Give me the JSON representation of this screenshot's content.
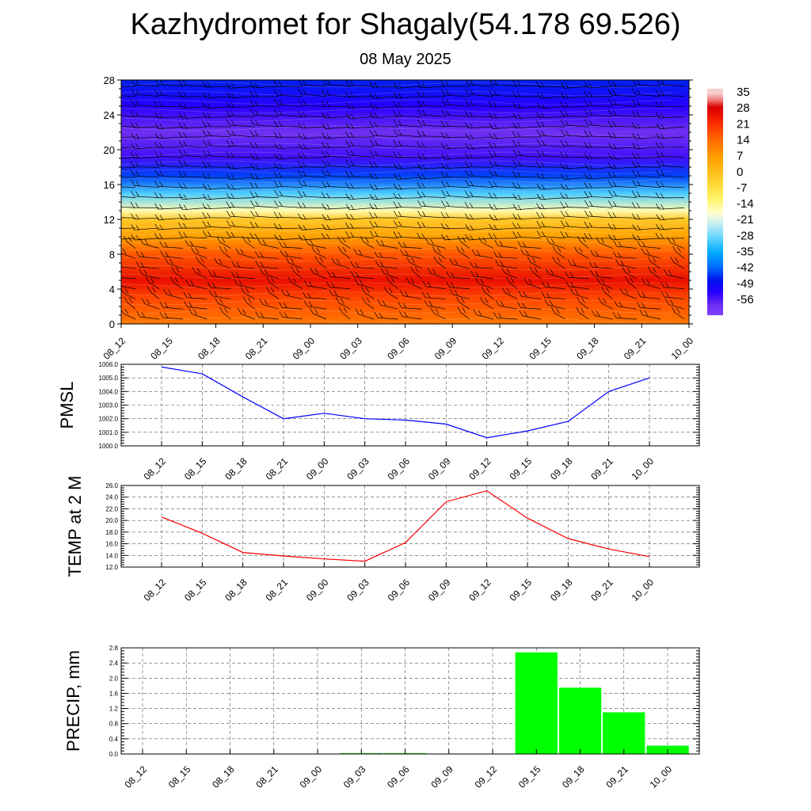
{
  "title": "Kazhydromet for Shagaly(54.178 69.526)",
  "subtitle": "08 May 2025",
  "time_labels": [
    "08_12",
    "08_15",
    "08_18",
    "08_21",
    "09_00",
    "09_03",
    "09_06",
    "09_09",
    "09_12",
    "09_15",
    "09_18",
    "09_21",
    "10_00"
  ],
  "chart_data": [
    {
      "type": "heatmap",
      "title": "",
      "x": [
        "08_12",
        "08_15",
        "08_18",
        "08_21",
        "09_00",
        "09_03",
        "09_06",
        "09_09",
        "09_12",
        "09_15",
        "09_18",
        "09_21",
        "10_00"
      ],
      "ylim": [
        0,
        28
      ],
      "y_ticks": [
        0,
        4,
        8,
        12,
        16,
        20,
        24,
        28
      ],
      "color_scale": [
        35,
        28,
        21,
        14,
        7,
        0,
        -7,
        -14,
        -21,
        -28,
        -35,
        -42,
        -49,
        -56
      ],
      "vertical_profile": [
        {
          "y": 0,
          "value": 14
        },
        {
          "y": 3,
          "value": 20
        },
        {
          "y": 5,
          "value": 27
        },
        {
          "y": 8,
          "value": 18
        },
        {
          "y": 10,
          "value": 8
        },
        {
          "y": 12,
          "value": 0
        },
        {
          "y": 13,
          "value": -14
        },
        {
          "y": 15,
          "value": -28
        },
        {
          "y": 17,
          "value": -42
        },
        {
          "y": 19,
          "value": -52
        },
        {
          "y": 22,
          "value": -56
        },
        {
          "y": 25,
          "value": -50
        },
        {
          "y": 28,
          "value": -44
        }
      ],
      "overlay": "wind barbs"
    },
    {
      "type": "line",
      "ylabel": "PMSL",
      "x": [
        "08_12",
        "08_15",
        "08_18",
        "08_21",
        "09_00",
        "09_03",
        "09_06",
        "09_09",
        "09_12",
        "09_15",
        "09_18",
        "09_21",
        "10_00"
      ],
      "series": [
        {
          "values": [
            1005.8,
            1005.3,
            1003.6,
            1002.0,
            1002.4,
            1002.0,
            1001.9,
            1001.6,
            1000.6,
            1001.1,
            1001.8,
            1004.0,
            1005.0
          ],
          "color": "#0000ff"
        }
      ],
      "ylim": [
        1000.0,
        1006.0
      ],
      "y_ticks": [
        "1000.0",
        "1001.0",
        "1002.0",
        "1003.0",
        "1004.0",
        "1005.0",
        "1006.0"
      ],
      "grid": true
    },
    {
      "type": "line",
      "ylabel": "TEMP at 2 M",
      "x": [
        "08_12",
        "08_15",
        "08_18",
        "08_21",
        "09_00",
        "09_03",
        "09_06",
        "09_09",
        "09_12",
        "09_15",
        "09_18",
        "09_21",
        "10_00"
      ],
      "series": [
        {
          "values": [
            20.6,
            17.8,
            14.5,
            13.9,
            13.4,
            13.0,
            16.2,
            23.2,
            25.1,
            20.4,
            16.9,
            15.1,
            13.8
          ],
          "color": "#ff0000"
        }
      ],
      "ylim": [
        12.0,
        26.0
      ],
      "y_ticks": [
        "12.0",
        "14.0",
        "16.0",
        "18.0",
        "20.0",
        "22.0",
        "24.0",
        "26.0"
      ],
      "grid": true
    },
    {
      "type": "bar",
      "ylabel": "PRECIP, mm",
      "categories": [
        "08_12",
        "08_15",
        "08_18",
        "08_21",
        "09_00",
        "09_03",
        "09_06",
        "09_09",
        "09_12",
        "09_15",
        "09_18",
        "09_21",
        "10_00"
      ],
      "values": [
        0,
        0,
        0,
        0,
        0,
        0.02,
        0.02,
        0,
        0,
        2.68,
        1.75,
        1.1,
        0.22
      ],
      "color": "#00ff00",
      "ylim": [
        0.0,
        2.8
      ],
      "y_ticks": [
        "0.0",
        "0.4",
        "0.8",
        "1.2",
        "1.6",
        "2.0",
        "2.4",
        "2.8"
      ],
      "grid": true
    }
  ]
}
